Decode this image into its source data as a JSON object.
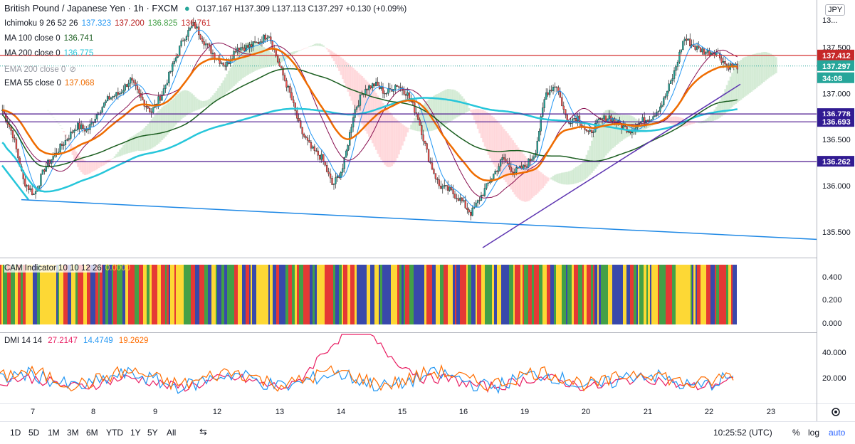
{
  "header": {
    "symbol": "British Pound / Japanese Yen · 1h · FXCM",
    "ohlc": "O137.167 H137.309 L137.113 C137.297 +0.130 (+0.09%)",
    "currency_badge": "JPY"
  },
  "indicators": [
    {
      "name": "Ichimoku 9 26 52 26",
      "values": [
        {
          "v": "137.323",
          "color": "#2196f3"
        },
        {
          "v": "137.200",
          "color": "#b71c1c"
        },
        {
          "v": "136.825",
          "color": "#43a047"
        },
        {
          "v": "136.761",
          "color": "#c62828"
        }
      ]
    },
    {
      "name": "MA 100 close 0",
      "values": [
        {
          "v": "136.741",
          "color": "#1b5e20"
        }
      ]
    },
    {
      "name": "MA 200 close 0",
      "values": [
        {
          "v": "136.775",
          "color": "#26c6da"
        }
      ]
    },
    {
      "name": "EMA 200 close 0",
      "values": [],
      "hidden": true
    },
    {
      "name": "EMA 55 close 0",
      "values": [
        {
          "v": "137.068",
          "color": "#ef6c00"
        }
      ]
    }
  ],
  "colors": {
    "up": "#26a69a",
    "down": "#ef5350",
    "ma100": "#1b5e20",
    "ma200": "#26c6da",
    "ema55": "#ef6c00",
    "tenkan": "#2196f3",
    "kijun": "#880e4f",
    "cloud_bull": "#c8e6c9",
    "cloud_bear": "#ffcdd2",
    "res_line": "#d32f2f",
    "level_line": "#4a148c",
    "trend": "#1e88e5",
    "uptrend": "#5e35b1"
  },
  "price_scale": {
    "labels": [
      "137.500",
      "137.000",
      "136.500",
      "136.000",
      "135.500"
    ],
    "top_partial": "13..."
  },
  "price_tags": [
    {
      "text": "137.412",
      "color": "#c62828"
    },
    {
      "text": "137.297",
      "color": "#26a69a"
    },
    {
      "text": "34:08",
      "color": "#26a69a"
    },
    {
      "text": "136.778",
      "color": "#311b92"
    },
    {
      "text": "136.693",
      "color": "#311b92"
    },
    {
      "text": "136.262",
      "color": "#311b92"
    }
  ],
  "time_axis": [
    "7",
    "8",
    "9",
    "12",
    "13",
    "14",
    "15",
    "16",
    "19",
    "20",
    "21",
    "22",
    "23"
  ],
  "cam": {
    "title": "CAM Indicator 10 10 12 26",
    "value": "0.0000",
    "scale": [
      "0.400",
      "0.200",
      "0.000"
    ]
  },
  "dmi": {
    "title": "DMI 14 14",
    "values": [
      {
        "v": "27.2147",
        "color": "#e91e63"
      },
      {
        "v": "14.4749",
        "color": "#2196f3"
      },
      {
        "v": "19.2629",
        "color": "#ff6d00"
      }
    ],
    "scale": [
      "40.000",
      "20.000"
    ]
  },
  "toolbar": {
    "ranges": [
      "1D",
      "5D",
      "1M",
      "3M",
      "6M",
      "YTD",
      "1Y",
      "5Y",
      "All"
    ],
    "clock": "10:25:52 (UTC)",
    "percent": "%",
    "log": "log",
    "auto": "auto"
  },
  "chart_data": {
    "type": "candlestick",
    "title": "British Pound / Japanese Yen · 1h · FXCM",
    "ylim": [
      135.3,
      137.95
    ],
    "x": [
      "7",
      "8",
      "9",
      "12",
      "13",
      "14",
      "15",
      "16",
      "19",
      "20",
      "21",
      "22",
      "23"
    ],
    "horizontal_levels": [
      137.412,
      136.778,
      136.693,
      136.262
    ],
    "close_path": [
      136.82,
      136.55,
      136.05,
      135.9,
      136.2,
      136.35,
      136.5,
      136.65,
      136.6,
      136.8,
      136.95,
      137.0,
      137.15,
      136.95,
      136.8,
      137.0,
      137.3,
      137.6,
      137.75,
      137.55,
      137.4,
      137.3,
      137.5,
      137.5,
      137.55,
      137.65,
      137.3,
      137.0,
      136.6,
      136.4,
      136.3,
      136.0,
      136.2,
      136.8,
      137.05,
      137.1,
      137.0,
      137.1,
      137.0,
      136.75,
      136.3,
      136.0,
      135.95,
      135.85,
      135.7,
      135.9,
      136.1,
      136.3,
      136.15,
      136.2,
      136.35,
      137.0,
      137.1,
      136.7,
      136.75,
      136.55,
      136.7,
      136.75,
      136.65,
      136.6,
      136.7,
      136.75,
      136.9,
      137.2,
      137.6,
      137.5,
      137.45,
      137.45,
      137.3,
      137.297
    ]
  }
}
